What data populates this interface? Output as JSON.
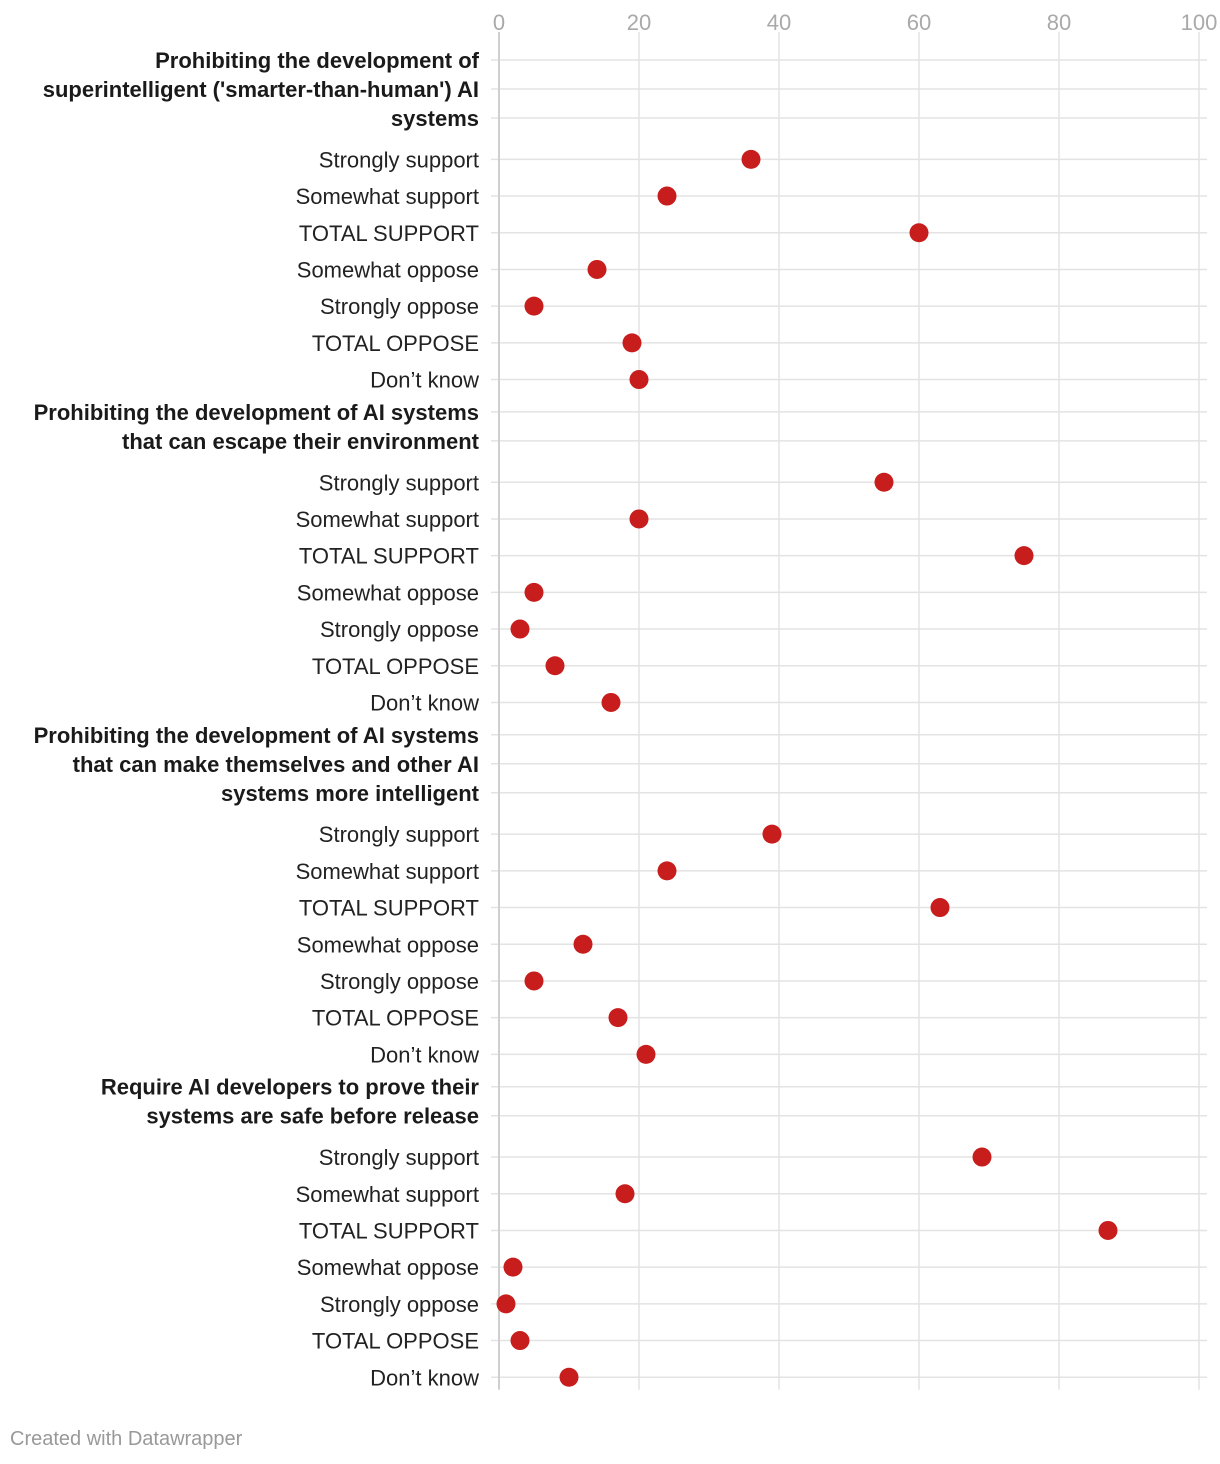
{
  "chart_data": {
    "type": "scatter",
    "subtype": "dot-plot",
    "xlim": [
      0,
      100
    ],
    "x_ticks": [
      0,
      20,
      40,
      60,
      80,
      100
    ],
    "grid": true,
    "dot_color": "#c71e1d",
    "groups": [
      {
        "title_lines": [
          "Prohibiting the development of",
          "superintelligent ('smarter-than-human') AI",
          "systems"
        ],
        "rows": [
          {
            "label": "Strongly support",
            "value": 36
          },
          {
            "label": "Somewhat support",
            "value": 24
          },
          {
            "label": "TOTAL SUPPORT",
            "value": 60
          },
          {
            "label": "Somewhat oppose",
            "value": 14
          },
          {
            "label": "Strongly oppose",
            "value": 5
          },
          {
            "label": "TOTAL OPPOSE",
            "value": 19
          },
          {
            "label": "Don’t know",
            "value": 20
          }
        ]
      },
      {
        "title_lines": [
          "Prohibiting the development of AI systems",
          "that can escape their environment"
        ],
        "rows": [
          {
            "label": "Strongly support",
            "value": 55
          },
          {
            "label": "Somewhat support",
            "value": 20
          },
          {
            "label": "TOTAL SUPPORT",
            "value": 75
          },
          {
            "label": "Somewhat oppose",
            "value": 5
          },
          {
            "label": "Strongly oppose",
            "value": 3
          },
          {
            "label": "TOTAL OPPOSE",
            "value": 8
          },
          {
            "label": "Don’t know",
            "value": 16
          }
        ]
      },
      {
        "title_lines": [
          "Prohibiting the development of AI systems",
          "that can make themselves and other AI",
          "systems more intelligent"
        ],
        "rows": [
          {
            "label": "Strongly support",
            "value": 39
          },
          {
            "label": "Somewhat support",
            "value": 24
          },
          {
            "label": "TOTAL SUPPORT",
            "value": 63
          },
          {
            "label": "Somewhat oppose",
            "value": 12
          },
          {
            "label": "Strongly oppose",
            "value": 5
          },
          {
            "label": "TOTAL OPPOSE",
            "value": 17
          },
          {
            "label": "Don’t know",
            "value": 21
          }
        ]
      },
      {
        "title_lines": [
          "Require AI developers to prove their",
          "systems are safe before release"
        ],
        "rows": [
          {
            "label": "Strongly support",
            "value": 69
          },
          {
            "label": "Somewhat support",
            "value": 18
          },
          {
            "label": "TOTAL SUPPORT",
            "value": 87
          },
          {
            "label": "Somewhat oppose",
            "value": 2
          },
          {
            "label": "Strongly oppose",
            "value": 1
          },
          {
            "label": "TOTAL OPPOSE",
            "value": 3
          },
          {
            "label": "Don’t know",
            "value": 10
          }
        ]
      }
    ]
  },
  "footer": {
    "credit": "Created with Datawrapper"
  }
}
